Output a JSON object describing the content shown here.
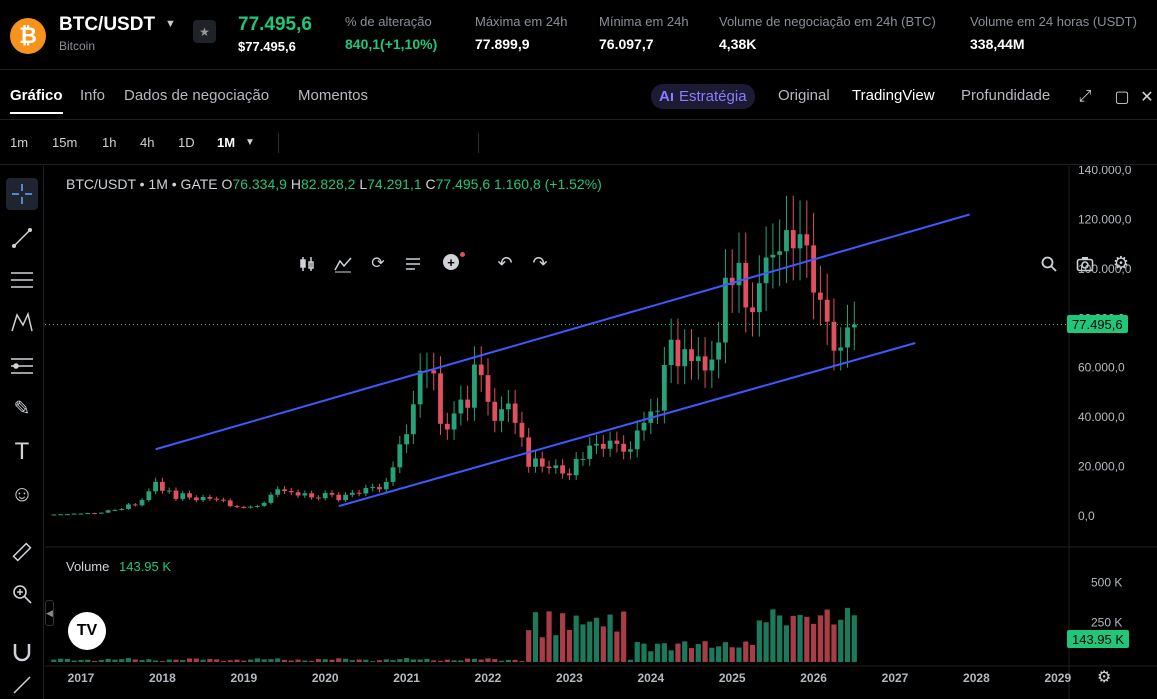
{
  "header": {
    "coin_symbol": "₿",
    "pair": "BTC/USDT",
    "coin_name": "Bitcoin",
    "price": "77.495,6",
    "price_usd": "$77.495,6",
    "stats": [
      {
        "label": "% de alteração",
        "value": "840,1(+1,10%)",
        "green": true
      },
      {
        "label": "Máxima em 24h",
        "value": "77.899,9",
        "green": false
      },
      {
        "label": "Mínima em 24h",
        "value": "76.097,7",
        "green": false
      },
      {
        "label": "Volume de negociação em 24h (BTC)",
        "value": "4,38K",
        "green": false
      },
      {
        "label": "Volume em 24 horas (USDT)",
        "value": "338,44M",
        "green": false
      }
    ]
  },
  "tabs": [
    "Gráfico",
    "Info",
    "Dados de negociação",
    "Momentos"
  ],
  "views": {
    "strategy": "Estratégia",
    "strategy_icon": "Aı",
    "items": [
      "Original",
      "TradingView",
      "Profundidade"
    ]
  },
  "toolbar": {
    "timeframes": [
      "1m",
      "15m",
      "1h",
      "4h",
      "1D",
      "1M"
    ]
  },
  "chart_legend": {
    "symbol": "BTC/USDT • 1M • GATE",
    "o_label": "O",
    "o": "76.334,9",
    "h_label": "H",
    "h": "82.828,2",
    "l_label": "L",
    "l": "74.291,1",
    "c_label": "C",
    "c": "77.495,6",
    "change": "1.160,8 (+1.52%)"
  },
  "volume_legend": {
    "label": "Volume",
    "value": "143.95 K"
  },
  "price_tag": "77.495,6",
  "volume_tag": "143.95 K",
  "tv_logo": "TV",
  "colors": {
    "up": "#26a17a",
    "down": "#e0505f",
    "channel": "#3d5afe",
    "accent": "#20c77a"
  },
  "chart_data": {
    "type": "candlestick",
    "price_axis_labels": [
      "140.000,0",
      "120.000,0",
      "100.000,0",
      "80.000,0",
      "60.000,0",
      "40.000,0",
      "20.000,0",
      "0,0"
    ],
    "price_axis_values": [
      140000,
      120000,
      100000,
      80000,
      60000,
      40000,
      20000,
      0
    ],
    "volume_axis_labels": [
      "500 K",
      "250 K"
    ],
    "volume_axis_values": [
      500000,
      250000
    ],
    "x_axis_labels": [
      "2017",
      "2018",
      "2019",
      "2020",
      "2021",
      "2022",
      "2023",
      "2024",
      "2025",
      "2026",
      "2027",
      "2028",
      "2029"
    ],
    "ylim": [
      0,
      140000
    ],
    "channel_lines": [
      {
        "from": [
          "2017-12",
          27000
        ],
        "to": [
          "2027-12",
          122000
        ]
      },
      {
        "from": [
          "2020-03",
          4000
        ],
        "to": [
          "2027-04",
          70000
        ]
      }
    ]
  }
}
